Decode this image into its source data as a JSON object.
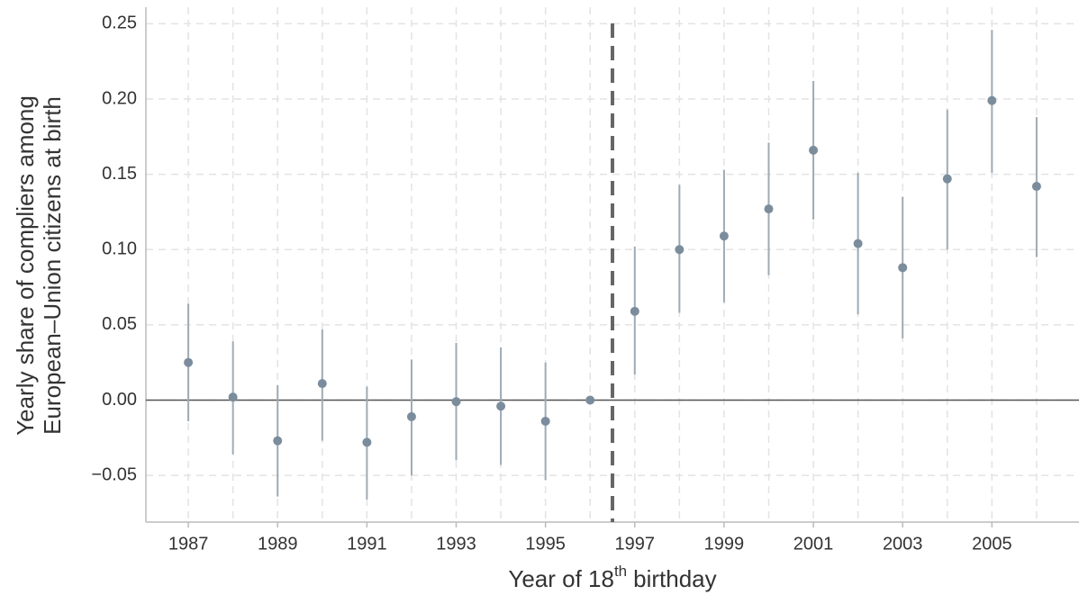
{
  "chart_data": {
    "type": "errorbar",
    "ylabel": [
      "Yearly share of compliers among",
      "European–Union citizens at birth"
    ],
    "xlabel": {
      "main": "Year of 18",
      "sup": "th",
      "end": "birthday"
    },
    "x": [
      1987,
      1988,
      1989,
      1990,
      1991,
      1992,
      1993,
      1994,
      1995,
      1996,
      1997,
      1998,
      1999,
      2000,
      2001,
      2002,
      2003,
      2004,
      2005,
      2006
    ],
    "values": [
      0.025,
      0.002,
      -0.027,
      0.011,
      -0.028,
      -0.011,
      -0.001,
      -0.004,
      -0.014,
      0,
      0.059,
      0.1,
      0.109,
      0.127,
      0.166,
      0.104,
      0.088,
      0.147,
      0.199,
      0.142
    ],
    "lower": [
      -0.014,
      -0.036,
      -0.064,
      -0.027,
      -0.066,
      -0.05,
      -0.04,
      -0.043,
      -0.053,
      0,
      0.017,
      0.058,
      0.065,
      0.083,
      0.12,
      0.057,
      0.041,
      0.1,
      0.151,
      0.095
    ],
    "upper": [
      0.064,
      0.039,
      0.01,
      0.047,
      0.009,
      0.027,
      0.038,
      0.035,
      0.025,
      0,
      0.102,
      0.143,
      0.153,
      0.171,
      0.212,
      0.151,
      0.135,
      0.193,
      0.246,
      0.188
    ],
    "point_color": "#7b8d9c",
    "bar_color": "#9eabb6",
    "xlim": [
      1986.05,
      2006.95
    ],
    "ylim": [
      -0.081,
      0.261
    ],
    "xticks": [
      1987,
      1989,
      1991,
      1993,
      1995,
      1997,
      1999,
      2001,
      2003,
      2005
    ],
    "x_minor_ticks": [
      1988,
      1990,
      1992,
      1994,
      1996,
      1998,
      2000,
      2002,
      2004,
      2006
    ],
    "yticks": [
      {
        "value": -0.05,
        "label": "−0.05"
      },
      {
        "value": 0,
        "label": "0.00"
      },
      0.05,
      {
        "value": 0.1,
        "label": "0.10"
      },
      0.15,
      {
        "value": 0.2,
        "label": "0.20"
      },
      0.25
    ],
    "hline": 0,
    "vline": 1996.5,
    "grid": true
  }
}
